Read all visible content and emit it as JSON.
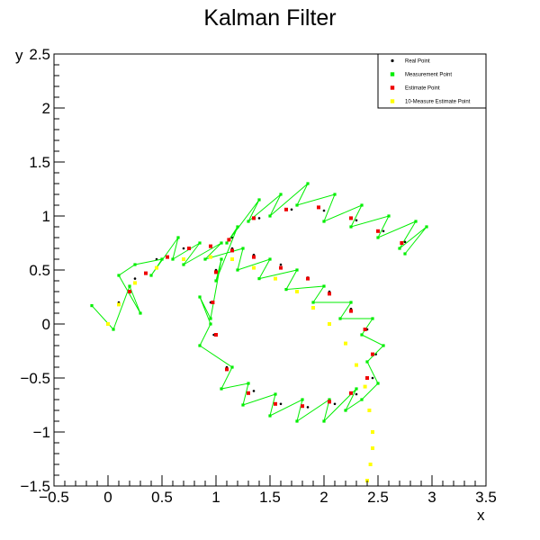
{
  "chart_data": {
    "type": "scatter",
    "title": "Kalman Filter",
    "xlabel": "x",
    "ylabel": "y",
    "xlim": [
      -0.5,
      3.5
    ],
    "ylim": [
      -1.5,
      2.5
    ],
    "x_ticks": [
      "−0.5",
      "0",
      "0.5",
      "1",
      "1.5",
      "2",
      "2.5",
      "3",
      "3.5"
    ],
    "y_ticks": [
      "−1.5",
      "−1",
      "−0.5",
      "0",
      "0.5",
      "1",
      "1.5",
      "2",
      "2.5"
    ],
    "legend_position": "top-right",
    "grid": false,
    "series": [
      {
        "name": "Real Point",
        "color": "#000000",
        "marker": "dot",
        "x": [
          0.0,
          0.1,
          0.25,
          0.45,
          0.7,
          0.95,
          1.15,
          1.35,
          1.6,
          1.85,
          2.05,
          2.25,
          2.4,
          2.48,
          2.45,
          2.3,
          2.1,
          1.85,
          1.6,
          1.35,
          1.1,
          0.98,
          0.95,
          1.0,
          1.15,
          1.4,
          1.7,
          2.0,
          2.3,
          2.55,
          2.75
        ],
        "y": [
          0.0,
          0.2,
          0.42,
          0.6,
          0.7,
          0.72,
          0.7,
          0.64,
          0.55,
          0.43,
          0.3,
          0.14,
          -0.05,
          -0.28,
          -0.5,
          -0.65,
          -0.74,
          -0.77,
          -0.74,
          -0.62,
          -0.4,
          -0.1,
          0.2,
          0.5,
          0.8,
          0.98,
          1.06,
          1.05,
          0.96,
          0.86,
          0.76
        ]
      },
      {
        "name": "Measurement Point",
        "color": "#00ee00",
        "marker": "square",
        "x": [
          -0.15,
          0.05,
          0.2,
          0.3,
          0.1,
          0.25,
          0.5,
          0.4,
          0.65,
          0.6,
          0.85,
          0.7,
          1.05,
          0.9,
          1.25,
          1.2,
          1.5,
          1.4,
          1.75,
          1.65,
          2.0,
          1.9,
          2.25,
          2.15,
          2.45,
          2.35,
          2.55,
          2.4,
          2.5,
          2.35,
          2.2,
          2.3,
          2.0,
          2.05,
          1.75,
          1.8,
          1.5,
          1.55,
          1.25,
          1.3,
          1.05,
          1.15,
          0.85,
          0.95,
          0.85,
          0.95,
          1.05,
          1.0,
          1.2,
          1.1,
          1.4,
          1.3,
          1.6,
          1.5,
          1.85,
          1.75,
          2.1,
          2.0,
          2.35,
          2.25,
          2.6,
          2.5,
          2.85,
          2.7,
          2.95,
          2.75
        ],
        "y": [
          0.17,
          -0.05,
          0.35,
          0.1,
          0.45,
          0.55,
          0.6,
          0.45,
          0.8,
          0.6,
          0.75,
          0.55,
          0.75,
          0.6,
          0.7,
          0.5,
          0.6,
          0.42,
          0.5,
          0.32,
          0.35,
          0.2,
          0.2,
          0.05,
          0.05,
          -0.1,
          -0.2,
          -0.35,
          -0.55,
          -0.7,
          -0.8,
          -0.6,
          -0.9,
          -0.7,
          -0.9,
          -0.7,
          -0.85,
          -0.65,
          -0.75,
          -0.55,
          -0.6,
          -0.4,
          -0.2,
          0.0,
          0.25,
          0.05,
          0.6,
          0.4,
          0.9,
          0.75,
          1.15,
          0.95,
          1.2,
          1.0,
          1.3,
          1.1,
          1.2,
          0.95,
          1.1,
          0.9,
          1.0,
          0.8,
          0.95,
          0.7,
          0.9,
          0.65
        ]
      },
      {
        "name": "Estimate Point",
        "color": "#ee0000",
        "marker": "square",
        "x": [
          0.2,
          0.35,
          0.55,
          0.75,
          0.95,
          1.15,
          1.35,
          1.6,
          1.85,
          2.05,
          2.25,
          2.38,
          2.45,
          2.4,
          2.25,
          2.05,
          1.8,
          1.55,
          1.3,
          1.1,
          1.0,
          0.97,
          1.0,
          1.12,
          1.35,
          1.65,
          1.95,
          2.25,
          2.5,
          2.72
        ],
        "y": [
          0.3,
          0.47,
          0.62,
          0.7,
          0.72,
          0.68,
          0.62,
          0.52,
          0.42,
          0.28,
          0.12,
          -0.05,
          -0.28,
          -0.5,
          -0.64,
          -0.72,
          -0.76,
          -0.74,
          -0.64,
          -0.42,
          -0.1,
          0.2,
          0.48,
          0.78,
          0.98,
          1.06,
          1.08,
          0.98,
          0.86,
          0.75
        ]
      },
      {
        "name": "10-Measure Estimate Point",
        "color": "#ffff00",
        "marker": "square",
        "x": [
          0.0,
          0.1,
          0.25,
          0.45,
          0.7,
          0.95,
          1.15,
          1.35,
          1.55,
          1.75,
          1.9,
          2.05,
          2.2,
          2.3,
          2.38,
          2.42,
          2.45,
          2.45,
          2.43,
          2.4
        ],
        "y": [
          0.0,
          0.18,
          0.38,
          0.52,
          0.6,
          0.62,
          0.6,
          0.52,
          0.42,
          0.3,
          0.15,
          0.0,
          -0.18,
          -0.38,
          -0.58,
          -0.8,
          -1.0,
          -1.15,
          -1.3,
          -1.45
        ]
      }
    ]
  }
}
